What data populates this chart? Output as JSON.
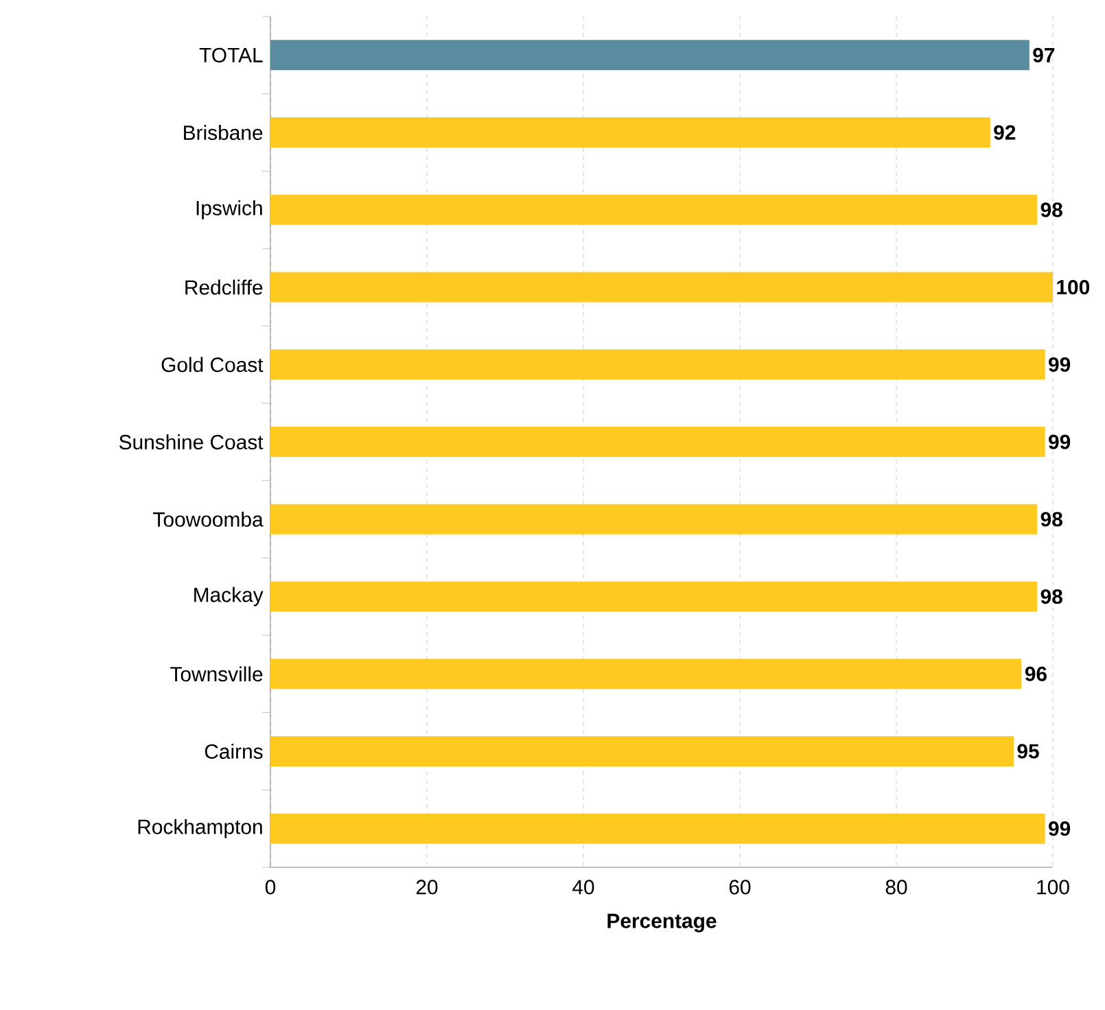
{
  "chart_data": {
    "type": "bar",
    "orientation": "horizontal",
    "xlabel": "Percentage",
    "categories": [
      "TOTAL",
      "Brisbane",
      "Ipswich",
      "Redcliffe",
      "Gold Coast",
      "Sunshine Coast",
      "Toowoomba",
      "Mackay",
      "Townsville",
      "Cairns",
      "Rockhampton"
    ],
    "values": [
      97,
      92,
      98,
      100,
      99,
      99,
      98,
      98,
      96,
      95,
      99
    ],
    "colors": [
      "#5a8ca0",
      "#fec921",
      "#fec921",
      "#fec921",
      "#fec921",
      "#fec921",
      "#fec921",
      "#fec921",
      "#fec921",
      "#fec921",
      "#fec921"
    ],
    "xlim": [
      0,
      100
    ],
    "xticks": [
      0,
      20,
      40,
      60,
      80,
      100
    ],
    "grid": "x",
    "data_labels": true
  }
}
